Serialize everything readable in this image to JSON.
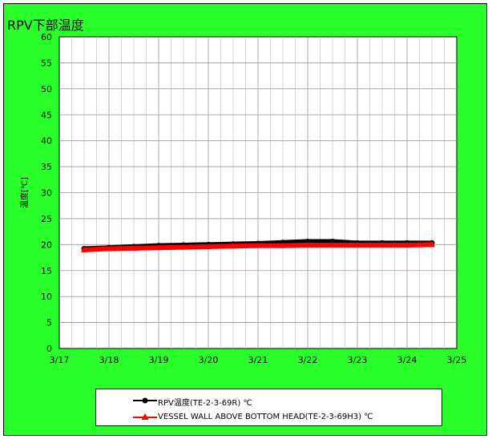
{
  "chart_data": {
    "type": "line",
    "title": "RPV下部温度",
    "ylabel": "温度[℃]",
    "xlabel": "",
    "ylim": [
      0,
      60
    ],
    "xlim": [
      17,
      25
    ],
    "y_ticks": [
      "0",
      "5",
      "10",
      "15",
      "20",
      "25",
      "30",
      "35",
      "40",
      "45",
      "50",
      "55",
      "60"
    ],
    "x_ticks": [
      "3/17",
      "3/18",
      "3/19",
      "3/20",
      "3/21",
      "3/22",
      "3/23",
      "3/24",
      "3/25"
    ],
    "grid": true,
    "legend_position": "bottom",
    "series": [
      {
        "name": "RPV温度(TE-2-3-69R) ℃",
        "color": "#000000",
        "marker": "circle",
        "x": [
          17.5,
          18.0,
          18.5,
          19.0,
          19.5,
          20.0,
          20.5,
          21.0,
          21.5,
          22.0,
          22.5,
          23.0,
          23.5,
          24.0,
          24.5
        ],
        "values": [
          19.2,
          19.4,
          19.6,
          19.8,
          19.9,
          20.0,
          20.1,
          20.2,
          20.4,
          20.6,
          20.6,
          20.3,
          20.3,
          20.3,
          20.3
        ]
      },
      {
        "name": "VESSEL WALL ABOVE BOTTOM HEAD(TE-2-3-69H3) ℃",
        "color": "#ff0000",
        "marker": "triangle",
        "x": [
          17.5,
          18.0,
          18.5,
          19.0,
          19.5,
          20.0,
          20.5,
          21.0,
          21.5,
          22.0,
          22.5,
          23.0,
          23.5,
          24.0,
          24.5
        ],
        "values": [
          19.0,
          19.2,
          19.3,
          19.4,
          19.5,
          19.6,
          19.7,
          19.8,
          19.8,
          19.9,
          19.9,
          19.9,
          19.9,
          19.9,
          20.0
        ]
      }
    ]
  },
  "colors": {
    "background": "#2bff2b",
    "plot_area": "#ffffff",
    "grid": "#999999"
  }
}
